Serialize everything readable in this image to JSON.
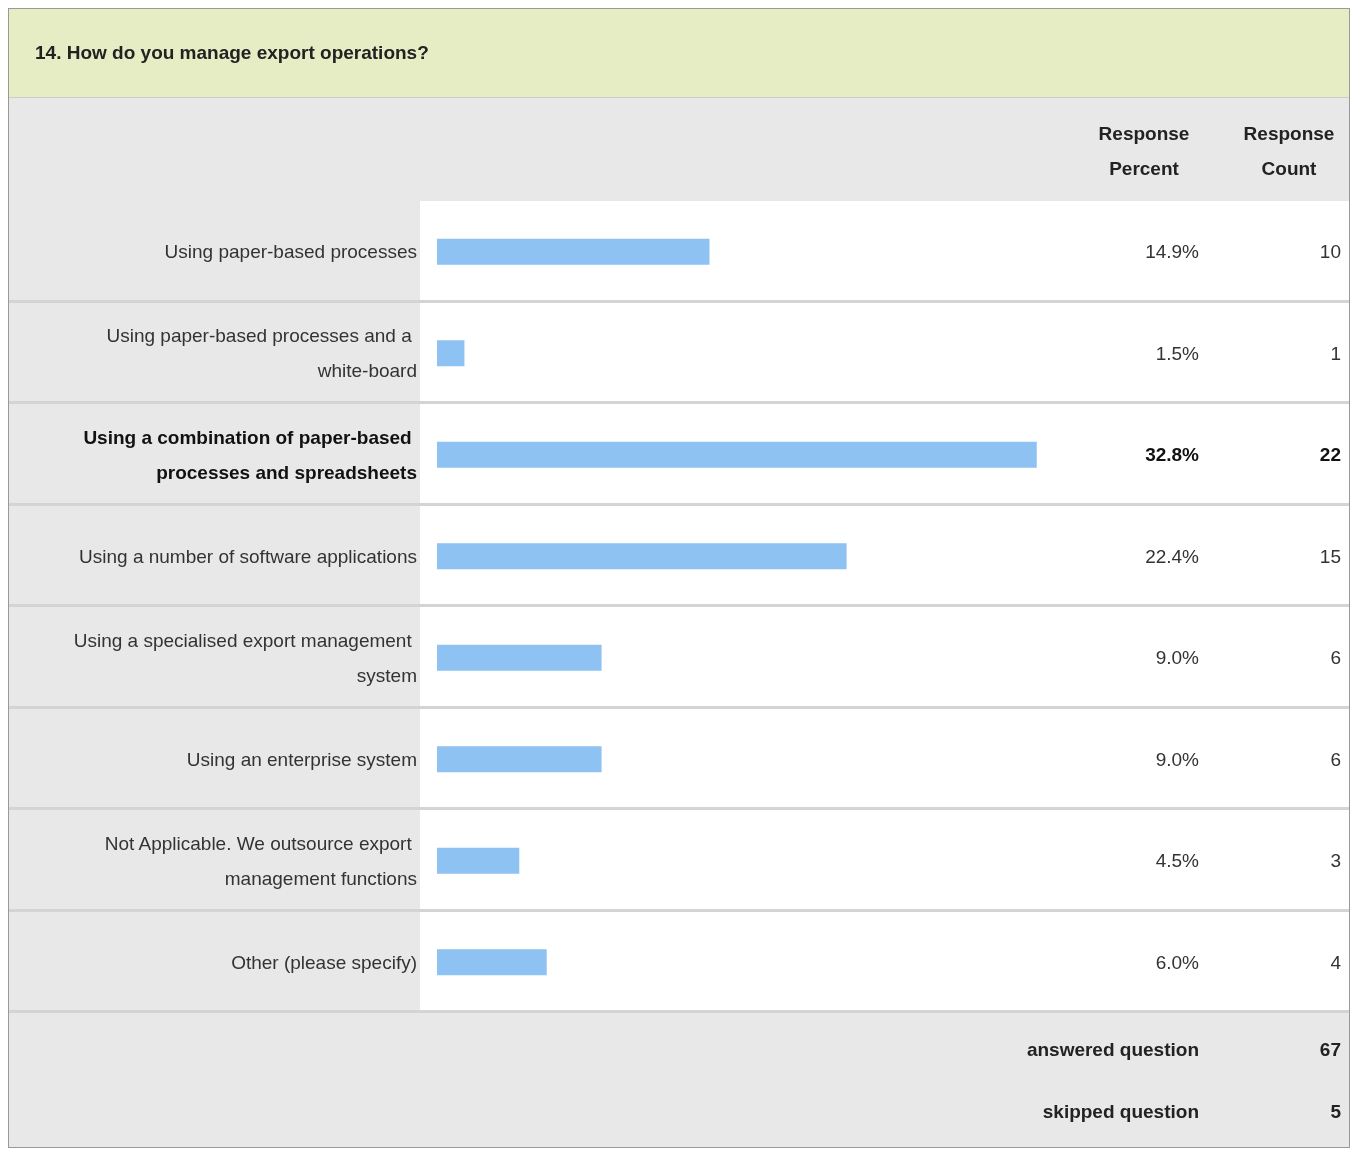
{
  "chart_data": {
    "type": "bar",
    "orientation": "horizontal",
    "title": "14. How do you manage export operations?",
    "categories": [
      "Using paper-based processes",
      "Using paper-based processes and a white-board",
      "Using a combination of paper-based processes and spreadsheets",
      "Using a number of software applications",
      "Using a specialised export management system",
      "Using an enterprise system",
      "Not Applicable. We outsource export management functions",
      "Other (please specify)"
    ],
    "values": [
      14.9,
      1.5,
      32.8,
      22.4,
      9.0,
      9.0,
      4.5,
      6.0
    ],
    "value_labels": [
      "14.9%",
      "1.5%",
      "32.8%",
      "22.4%",
      "9.0%",
      "9.0%",
      "4.5%",
      "6.0%"
    ],
    "color": "#8dc2f2",
    "tick_labels": "y",
    "annotations": [
      "Response Percent",
      "Response Count",
      "10",
      "1",
      "22",
      "15",
      "6",
      "6",
      "3",
      "4",
      "answered question",
      "67",
      "skipped question",
      "5"
    ]
  }
}
